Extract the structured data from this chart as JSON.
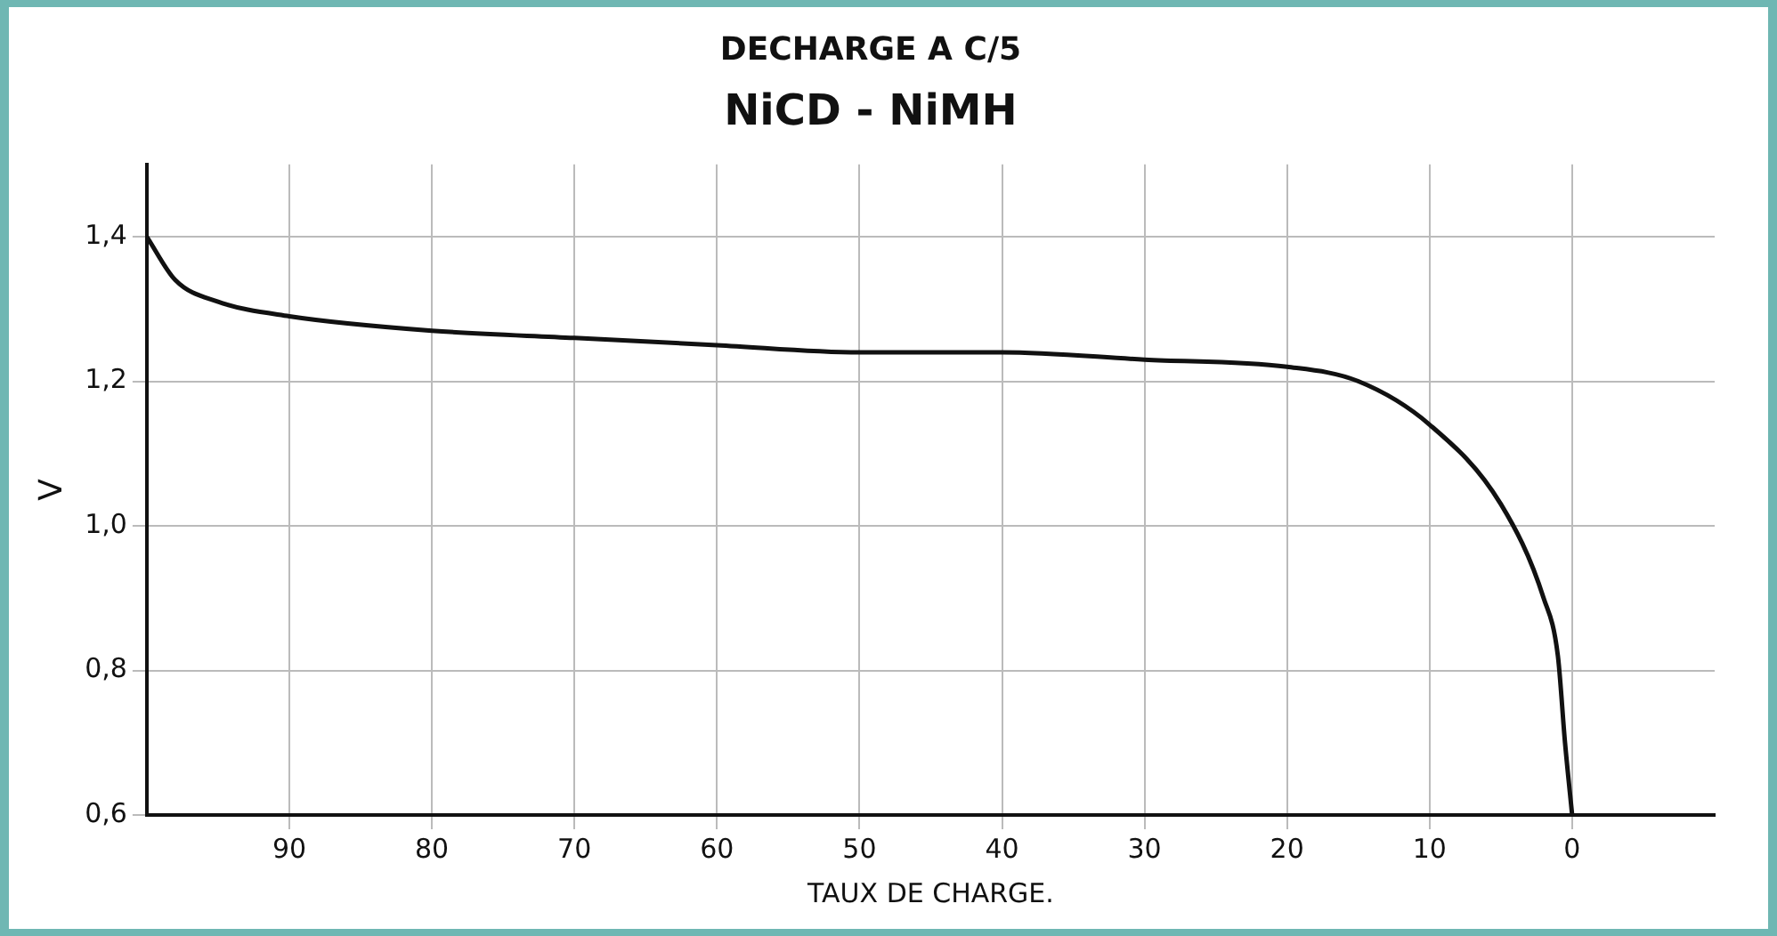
{
  "chart_data": {
    "type": "line",
    "title": "DECHARGE A C/5",
    "subtitle": "NiCD - NiMH",
    "xlabel": "TAUX DE CHARGE.",
    "ylabel": "V",
    "x": [
      100,
      98,
      95,
      90,
      80,
      70,
      60,
      50,
      40,
      30,
      20,
      15,
      10,
      5,
      2,
      1,
      0.5,
      0
    ],
    "series": [
      {
        "color": "#111111",
        "values": [
          1.4,
          1.34,
          1.31,
          1.29,
          1.27,
          1.26,
          1.25,
          1.24,
          1.24,
          1.23,
          1.22,
          1.2,
          1.14,
          1.03,
          0.9,
          0.82,
          0.7,
          0.6
        ]
      }
    ],
    "xlim": [
      100,
      -10
    ],
    "xticks": [
      90,
      80,
      70,
      60,
      50,
      40,
      30,
      20,
      10,
      0
    ],
    "ylim": [
      0.6,
      1.5
    ],
    "yticks": [
      {
        "value": 0.6,
        "label": "0,6"
      },
      {
        "value": 0.8,
        "label": "0,8"
      },
      {
        "value": 1.0,
        "label": "1,0"
      },
      {
        "value": 1.2,
        "label": "1,2"
      },
      {
        "value": 1.4,
        "label": "1,4"
      }
    ],
    "grid": true,
    "marker": "none",
    "line_style": "solid",
    "legend": false
  }
}
